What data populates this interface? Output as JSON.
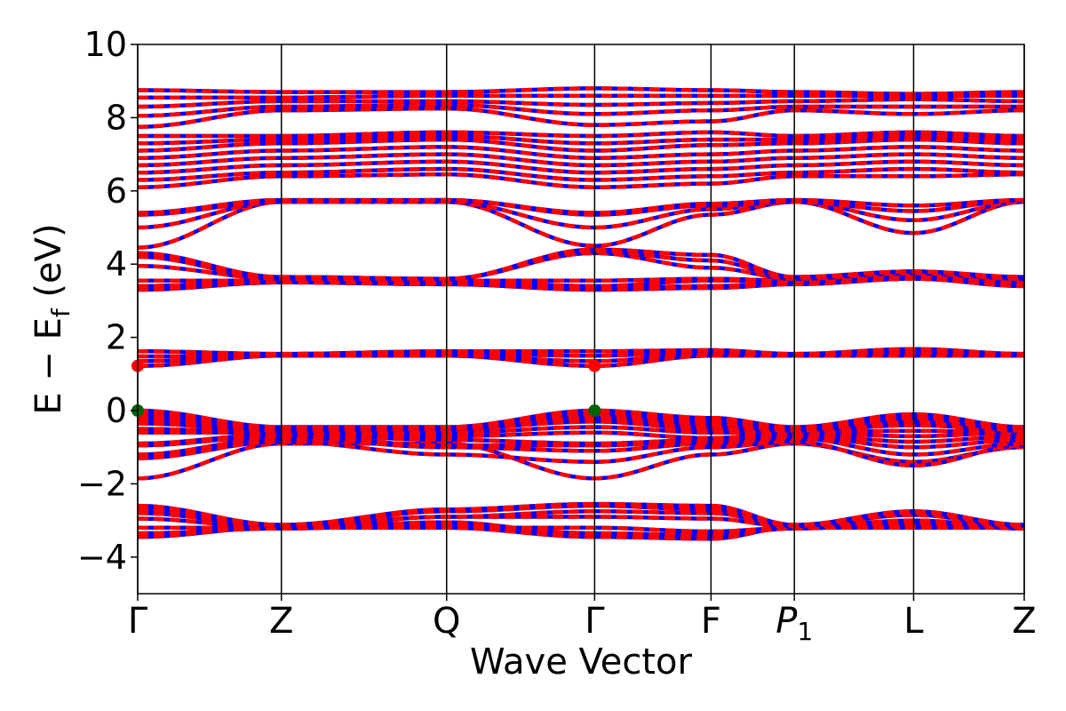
{
  "chart_data": {
    "type": "line",
    "title": "",
    "xlabel": "Wave Vector",
    "ylabel_main": "E − E",
    "ylabel_sub": "f",
    "ylabel_unit": " (eV)",
    "ylim": [
      -5,
      10
    ],
    "yticks": [
      {
        "value": -4,
        "label": "−4"
      },
      {
        "value": -2,
        "label": "−2"
      },
      {
        "value": 0,
        "label": "0"
      },
      {
        "value": 2,
        "label": "2"
      },
      {
        "value": 4,
        "label": "4"
      },
      {
        "value": 6,
        "label": "6"
      },
      {
        "value": 8,
        "label": "8"
      },
      {
        "value": 10,
        "label": "10"
      }
    ],
    "xlim": [
      0,
      6.17
    ],
    "kpoints": [
      {
        "x": 0.0,
        "label": "Γ"
      },
      {
        "x": 1.0,
        "label": "Z"
      },
      {
        "x": 2.15,
        "label": "Q"
      },
      {
        "x": 3.18,
        "label": "Γ"
      },
      {
        "x": 3.99,
        "label": "F"
      },
      {
        "x": 4.57,
        "label": "P",
        "sub": "1"
      },
      {
        "x": 5.4,
        "label": "L"
      },
      {
        "x": 6.17,
        "label": "Z"
      }
    ],
    "colors": {
      "spin_up": "#0000ff",
      "spin_down": "#ff0000",
      "vbm": "#006400",
      "cbm": "#ff0000"
    },
    "vbm_points": [
      {
        "x": 0.0,
        "y": 0.0
      },
      {
        "x": 3.18,
        "y": 0.0
      }
    ],
    "cbm_points": [
      {
        "x": 0.0,
        "y": 1.22
      },
      {
        "x": 3.18,
        "y": 1.22
      }
    ],
    "bands": [
      [
        -3.45,
        -3.18,
        -3.2,
        -3.45,
        -3.5,
        -3.18,
        -3.15,
        -3.2
      ],
      [
        -3.4,
        -3.2,
        -3.05,
        -3.4,
        -3.45,
        -3.2,
        -3.05,
        -3.2
      ],
      [
        -3.35,
        -3.22,
        -3.1,
        -3.35,
        -3.4,
        -3.22,
        -3.1,
        -3.22
      ],
      [
        -3.2,
        -3.2,
        -3.2,
        -3.2,
        -3.3,
        -3.2,
        -3.2,
        -3.2
      ],
      [
        -2.95,
        -3.2,
        -2.9,
        -2.9,
        -2.95,
        -3.18,
        -3.0,
        -3.2
      ],
      [
        -2.8,
        -3.15,
        -2.9,
        -2.75,
        -2.8,
        -3.15,
        -2.85,
        -3.18
      ],
      [
        -2.7,
        -3.15,
        -2.75,
        -2.6,
        -2.7,
        -3.15,
        -2.8,
        -3.15
      ],
      [
        -2.6,
        -3.12,
        -2.7,
        -2.55,
        -2.6,
        -3.12,
        -2.75,
        -3.12
      ],
      [
        -1.85,
        -0.9,
        -0.9,
        -1.85,
        -1.2,
        -0.9,
        -1.4,
        -1.0
      ],
      [
        -1.3,
        -0.85,
        -1.2,
        -1.4,
        -1.0,
        -0.85,
        -1.5,
        -0.95
      ],
      [
        -1.2,
        -0.75,
        -1.0,
        -1.1,
        -0.9,
        -0.75,
        -1.2,
        -0.9
      ],
      [
        -0.95,
        -0.7,
        -0.95,
        -0.95,
        -0.85,
        -0.7,
        -1.0,
        -0.8
      ],
      [
        -0.9,
        -0.65,
        -0.8,
        -0.9,
        -0.8,
        -0.65,
        -0.85,
        -0.7
      ],
      [
        -0.6,
        -0.6,
        -0.7,
        -0.6,
        -0.75,
        -0.6,
        -0.7,
        -0.6
      ],
      [
        -0.5,
        -0.6,
        -0.6,
        -0.45,
        -0.6,
        -0.6,
        -0.55,
        -0.6
      ],
      [
        -0.35,
        -0.55,
        -0.5,
        -0.3,
        -0.5,
        -0.55,
        -0.4,
        -0.55
      ],
      [
        -0.25,
        -0.5,
        -0.5,
        -0.2,
        -0.45,
        -0.5,
        -0.3,
        -0.5
      ],
      [
        -0.15,
        -0.55,
        -0.5,
        -0.1,
        -0.35,
        -0.55,
        -0.2,
        -0.55
      ],
      [
        -0.05,
        -0.5,
        -0.5,
        -0.05,
        -0.25,
        -0.5,
        -0.15,
        -0.45
      ],
      [
        0.0,
        -0.45,
        -0.45,
        0.0,
        -0.2,
        -0.45,
        -0.1,
        -0.45
      ],
      [
        1.22,
        1.5,
        1.5,
        1.22,
        1.5,
        1.5,
        1.5,
        1.5
      ],
      [
        1.35,
        1.52,
        1.5,
        1.35,
        1.55,
        1.52,
        1.55,
        1.52
      ],
      [
        1.48,
        1.52,
        1.55,
        1.5,
        1.6,
        1.52,
        1.6,
        1.52
      ],
      [
        1.62,
        1.55,
        1.62,
        1.62,
        1.65,
        1.55,
        1.68,
        1.55
      ],
      [
        3.3,
        3.5,
        3.45,
        3.3,
        3.35,
        3.45,
        3.6,
        3.4
      ],
      [
        3.35,
        3.5,
        3.5,
        3.35,
        3.4,
        3.5,
        3.6,
        3.45
      ],
      [
        3.4,
        3.55,
        3.55,
        3.4,
        3.55,
        3.55,
        3.65,
        3.5
      ],
      [
        3.55,
        3.55,
        3.55,
        3.55,
        3.6,
        3.55,
        3.7,
        3.55
      ],
      [
        3.95,
        3.6,
        3.6,
        4.3,
        3.9,
        3.6,
        3.75,
        3.6
      ],
      [
        4.2,
        3.6,
        3.6,
        4.35,
        4.1,
        3.6,
        3.8,
        3.6
      ],
      [
        4.3,
        3.65,
        3.6,
        4.4,
        4.25,
        3.65,
        3.8,
        3.65
      ],
      [
        4.45,
        5.7,
        5.7,
        4.5,
        5.35,
        5.7,
        4.85,
        5.7
      ],
      [
        5.0,
        5.7,
        5.7,
        5.0,
        5.5,
        5.7,
        5.2,
        5.7
      ],
      [
        5.35,
        5.7,
        5.75,
        5.35,
        5.6,
        5.7,
        5.45,
        5.75
      ],
      [
        5.4,
        5.75,
        5.75,
        5.4,
        5.65,
        5.75,
        5.6,
        5.75
      ],
      [
        6.1,
        6.4,
        6.45,
        6.1,
        6.2,
        6.4,
        6.4,
        6.45
      ],
      [
        6.3,
        6.5,
        6.6,
        6.3,
        6.4,
        6.5,
        6.6,
        6.5
      ],
      [
        6.5,
        6.7,
        6.8,
        6.5,
        6.6,
        6.7,
        6.8,
        6.7
      ],
      [
        6.7,
        6.9,
        7.0,
        6.7,
        6.8,
        6.9,
        7.0,
        6.9
      ],
      [
        6.9,
        7.1,
        7.2,
        6.9,
        7.0,
        7.1,
        7.2,
        7.1
      ],
      [
        7.1,
        7.3,
        7.4,
        7.1,
        7.25,
        7.3,
        7.4,
        7.3
      ],
      [
        7.3,
        7.4,
        7.5,
        7.3,
        7.4,
        7.4,
        7.5,
        7.4
      ],
      [
        7.5,
        7.5,
        7.6,
        7.5,
        7.6,
        7.5,
        7.6,
        7.5
      ],
      [
        7.75,
        8.2,
        8.25,
        7.8,
        7.9,
        8.2,
        8.1,
        8.2
      ],
      [
        8.05,
        8.3,
        8.35,
        8.1,
        8.2,
        8.3,
        8.3,
        8.3
      ],
      [
        8.3,
        8.45,
        8.45,
        8.35,
        8.4,
        8.45,
        8.5,
        8.45
      ],
      [
        8.55,
        8.55,
        8.6,
        8.6,
        8.6,
        8.6,
        8.6,
        8.6
      ],
      [
        8.75,
        8.7,
        8.7,
        8.8,
        8.75,
        8.7,
        8.65,
        8.7
      ]
    ]
  }
}
